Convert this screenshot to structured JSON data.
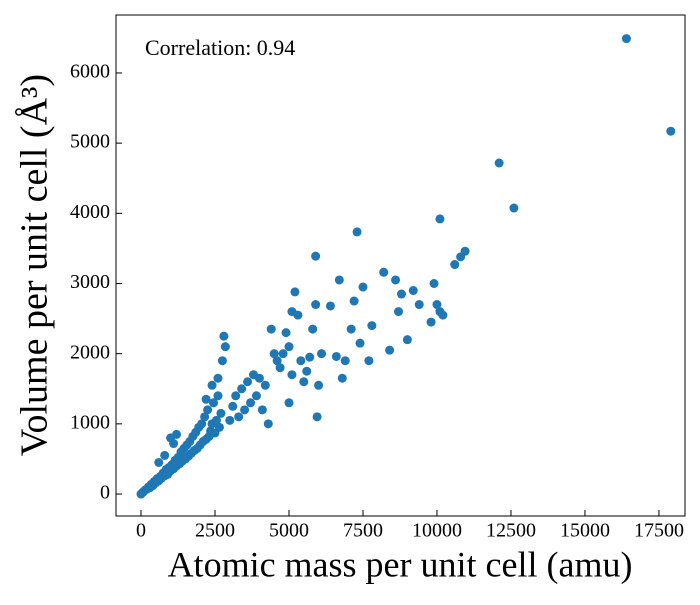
{
  "chart_data": {
    "type": "scatter",
    "annotation": "Correlation: 0.94",
    "x_label": "Atomic mass per unit cell (amu)",
    "y_label": "Volume per unit cell (Å³)",
    "color": "#1f77b4",
    "xlim": [
      -845,
      18380
    ],
    "ylim": [
      -313,
      6826
    ],
    "xticks": [
      0,
      2500,
      5000,
      7500,
      10000,
      12500,
      15000,
      17500
    ],
    "yticks": [
      0,
      1000,
      2000,
      3000,
      4000,
      5000,
      6000
    ],
    "x": [
      0,
      50,
      100,
      150,
      200,
      250,
      300,
      350,
      400,
      450,
      500,
      550,
      600,
      650,
      700,
      750,
      800,
      850,
      900,
      950,
      1000,
      1050,
      1100,
      1150,
      1200,
      1250,
      1300,
      1350,
      1400,
      1450,
      1500,
      1550,
      1600,
      1650,
      1700,
      1750,
      1800,
      1850,
      1900,
      1950,
      2000,
      2050,
      2100,
      2150,
      2200,
      2250,
      2300,
      2350,
      2400,
      2450,
      2500,
      2550,
      2600,
      2650,
      2700,
      2800,
      2850,
      2750,
      2600,
      2400,
      2200,
      1200,
      1000,
      1100,
      600,
      800,
      3000,
      3100,
      3200,
      3300,
      3400,
      3500,
      3600,
      3700,
      3800,
      3900,
      4000,
      4100,
      4200,
      4300,
      4400,
      4500,
      4600,
      4700,
      4800,
      4900,
      5000,
      5100,
      5200,
      5100,
      5000,
      5300,
      5400,
      5500,
      5600,
      5700,
      5800,
      5900,
      5950,
      6000,
      6100,
      6400,
      6600,
      6700,
      6800,
      6900,
      7100,
      7200,
      7400,
      7500,
      7700,
      7800,
      8200,
      8400,
      8600,
      8700,
      8800,
      9000,
      9200,
      9400,
      9800,
      9900,
      10000,
      10100,
      10200,
      10600,
      10800,
      10950,
      10100,
      7300,
      5900,
      12100,
      12600,
      16400,
      17900
    ],
    "values": [
      0,
      20,
      40,
      60,
      70,
      100,
      90,
      140,
      120,
      180,
      160,
      220,
      190,
      250,
      230,
      300,
      260,
      350,
      280,
      380,
      330,
      420,
      360,
      480,
      400,
      520,
      430,
      600,
      470,
      650,
      500,
      700,
      540,
      750,
      580,
      820,
      620,
      880,
      650,
      950,
      700,
      1000,
      750,
      1100,
      780,
      1200,
      820,
      900,
      1000,
      1300,
      870,
      1050,
      1400,
      950,
      1150,
      2250,
      2100,
      1900,
      1650,
      1550,
      1350,
      850,
      800,
      720,
      450,
      550,
      1050,
      1250,
      1400,
      1100,
      1500,
      1200,
      1600,
      1300,
      1700,
      1400,
      1650,
      1200,
      1550,
      1000,
      2350,
      2000,
      1900,
      1800,
      2000,
      2300,
      2100,
      2600,
      2880,
      1700,
      1300,
      2550,
      1900,
      1600,
      1750,
      1950,
      2350,
      2700,
      1100,
      1550,
      2000,
      2680,
      1960,
      3050,
      1650,
      1900,
      2350,
      2750,
      2150,
      2950,
      1900,
      2400,
      3160,
      2050,
      3050,
      2600,
      2850,
      2200,
      2900,
      2700,
      2450,
      3000,
      2700,
      2600,
      2550,
      3270,
      3380,
      3460,
      3920,
      3735,
      3390,
      4717,
      4075,
      6490,
      5170
    ]
  }
}
